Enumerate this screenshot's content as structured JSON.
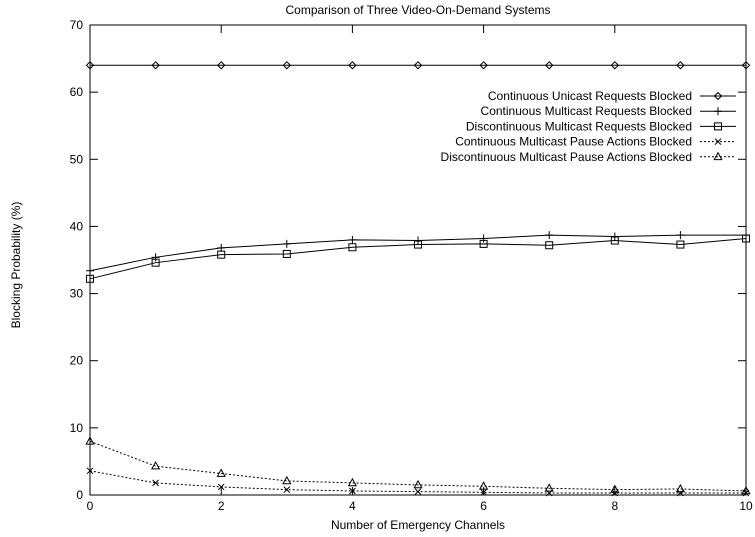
{
  "chart_data": {
    "type": "line",
    "title": "Comparison of Three Video-On-Demand Systems",
    "xlabel": "Number of Emergency Channels",
    "ylabel": "Blocking Probability (%)",
    "xlim": [
      0,
      10
    ],
    "ylim": [
      0,
      70
    ],
    "xticks": [
      0,
      2,
      4,
      6,
      8,
      10
    ],
    "yticks": [
      0,
      10,
      20,
      30,
      40,
      50,
      60,
      70
    ],
    "grid": false,
    "legend_position": "top-right",
    "x": [
      0,
      1,
      2,
      3,
      4,
      5,
      6,
      7,
      8,
      9,
      10
    ],
    "series": [
      {
        "name": "Continuous Unicast Requests Blocked",
        "marker": "diamond",
        "line": "solid",
        "values": [
          64,
          64,
          64,
          64,
          64,
          64,
          64,
          64,
          64,
          64,
          64
        ]
      },
      {
        "name": "Continuous Multicast Requests Blocked",
        "marker": "plus",
        "line": "solid",
        "values": [
          33.4,
          35.4,
          36.8,
          37.4,
          38.0,
          37.9,
          38.2,
          38.7,
          38.5,
          38.7,
          38.7
        ]
      },
      {
        "name": "Discontinuous Multicast Requests Blocked",
        "marker": "square",
        "line": "solid",
        "values": [
          32.2,
          34.6,
          35.8,
          35.9,
          36.9,
          37.3,
          37.4,
          37.2,
          37.9,
          37.3,
          38.2
        ]
      },
      {
        "name": "Continuous Multicast Pause Actions Blocked",
        "marker": "cross",
        "line": "dotted",
        "values": [
          3.6,
          1.8,
          1.2,
          0.8,
          0.6,
          0.5,
          0.4,
          0.3,
          0.3,
          0.3,
          0.3
        ]
      },
      {
        "name": "Discontinuous Multicast Pause Actions Blocked",
        "marker": "triangle",
        "line": "dotted",
        "values": [
          8.0,
          4.3,
          3.2,
          2.1,
          1.8,
          1.5,
          1.3,
          1.0,
          0.8,
          0.9,
          0.6
        ]
      }
    ]
  }
}
